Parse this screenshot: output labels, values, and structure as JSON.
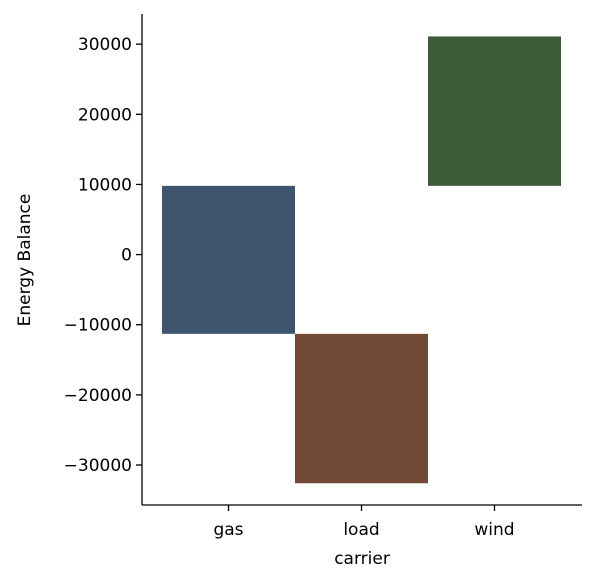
{
  "chart_data": {
    "type": "bar",
    "subtype": "waterfall-floating",
    "title": "",
    "xlabel": "carrier",
    "ylabel": "Energy Balance",
    "categories": [
      "gas",
      "load",
      "wind"
    ],
    "bars": [
      {
        "category": "gas",
        "bottom": -11300,
        "top": 9800,
        "color": "#3f556f"
      },
      {
        "category": "load",
        "bottom": -32600,
        "top": -11300,
        "color": "#734a36"
      },
      {
        "category": "wind",
        "bottom": 9800,
        "top": 31100,
        "color": "#3b5b39"
      }
    ],
    "ylim": [
      -35700,
      34300
    ],
    "yticks": [
      {
        "value": 30000,
        "label": "30000"
      },
      {
        "value": 20000,
        "label": "20000"
      },
      {
        "value": 10000,
        "label": "10000"
      },
      {
        "value": 0,
        "label": "0"
      },
      {
        "value": -10000,
        "label": "−10000"
      },
      {
        "value": -20000,
        "label": "−20000"
      },
      {
        "value": -30000,
        "label": "−30000"
      }
    ],
    "grid": false,
    "legend": "none",
    "spines": "left-bottom"
  }
}
